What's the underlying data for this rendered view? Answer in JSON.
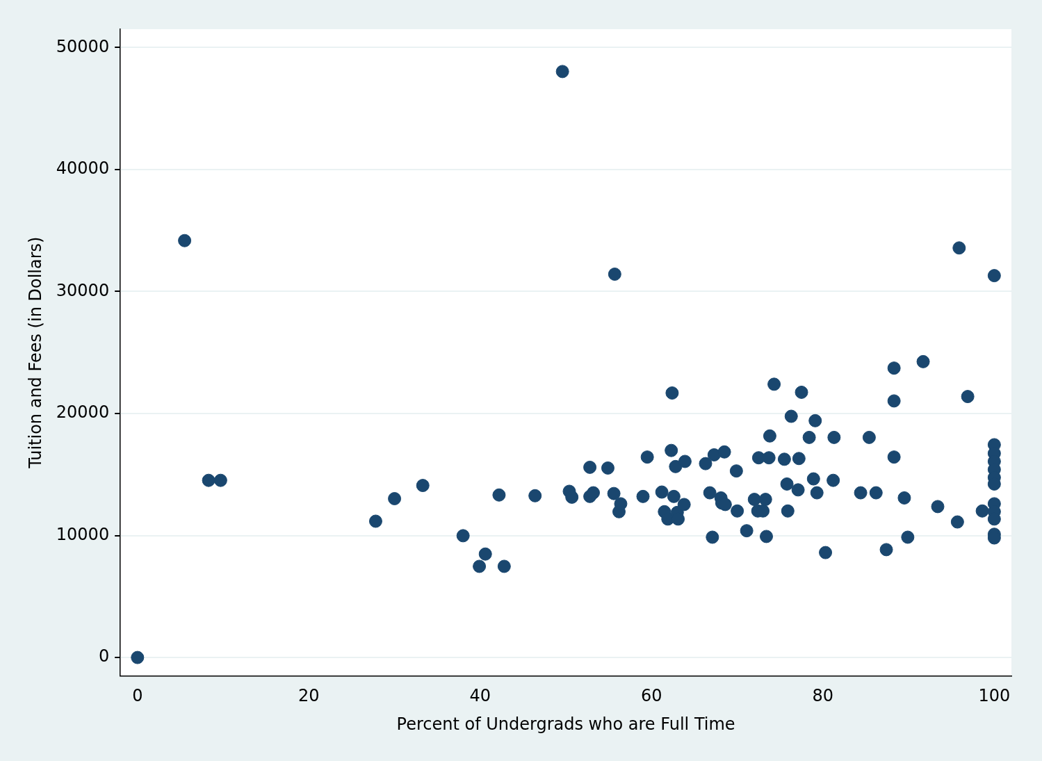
{
  "chart_data": {
    "type": "scatter",
    "x_label": "Percent of Undergrads who are Full Time",
    "y_label": "Tuition and Fees (in Dollars)",
    "x": [
      0,
      5.5,
      8.3,
      9.7,
      27.8,
      30,
      33.3,
      38,
      39.9,
      40.6,
      42.8,
      42.2,
      46.4,
      49.6,
      50.4,
      50.7,
      52.8,
      52.8,
      53.2,
      54.9,
      55.6,
      55.7,
      56.2,
      56.4,
      59,
      59.5,
      61.2,
      61.5,
      61.9,
      62.3,
      62.4,
      62.6,
      62.8,
      63,
      63.1,
      63.8,
      63.9,
      66.3,
      66.8,
      67.1,
      67.3,
      68.1,
      68.2,
      68.5,
      68.6,
      69.9,
      70,
      71.1,
      72,
      72.4,
      72.5,
      73,
      73.3,
      73.4,
      73.7,
      73.8,
      74.3,
      75.5,
      75.8,
      75.9,
      76.3,
      77.1,
      77.2,
      77.5,
      78.4,
      78.9,
      79.1,
      79.3,
      80.3,
      81.2,
      81.3,
      84.4,
      85.4,
      86.2,
      87.4,
      88.3,
      88.3,
      88.3,
      89.5,
      89.9,
      91.7,
      93.4,
      95.7,
      95.9,
      96.9,
      98.6,
      100,
      100,
      100,
      100,
      100,
      100,
      100,
      100,
      100,
      100,
      100,
      100
    ],
    "values": [
      0,
      34170,
      14520,
      14520,
      11170,
      13020,
      14100,
      9980,
      7470,
      8480,
      7470,
      13320,
      13260,
      48030,
      13620,
      13140,
      15590,
      13200,
      13500,
      15530,
      13440,
      31420,
      11950,
      12600,
      13200,
      16430,
      13560,
      11950,
      11350,
      16970,
      21680,
      13200,
      15650,
      11890,
      11350,
      12540,
      16070,
      15890,
      13500,
      9860,
      16610,
      13080,
      12660,
      16850,
      12540,
      15290,
      12010,
      10390,
      12960,
      12010,
      16370,
      12010,
      12960,
      9920,
      16370,
      18160,
      22400,
      16250,
      14220,
      12010,
      19770,
      13740,
      16310,
      21740,
      18040,
      14640,
      19410,
      13500,
      8600,
      14520,
      18040,
      13500,
      18040,
      13500,
      8840,
      16430,
      23720,
      21030,
      13080,
      9860,
      24250,
      12370,
      11110,
      33570,
      21390,
      12010,
      31300,
      17440,
      16730,
      16070,
      15410,
      14750,
      14220,
      12600,
      11950,
      11350,
      10100,
      9800
    ],
    "color": "#1a476f",
    "marker": "circle",
    "xlim": [
      -2,
      102
    ],
    "ylim": [
      -1500,
      51500
    ],
    "xticks": [
      0,
      20,
      40,
      60,
      80,
      100
    ],
    "yticks": [
      0,
      10000,
      20000,
      30000,
      40000,
      50000
    ],
    "grid": true
  }
}
